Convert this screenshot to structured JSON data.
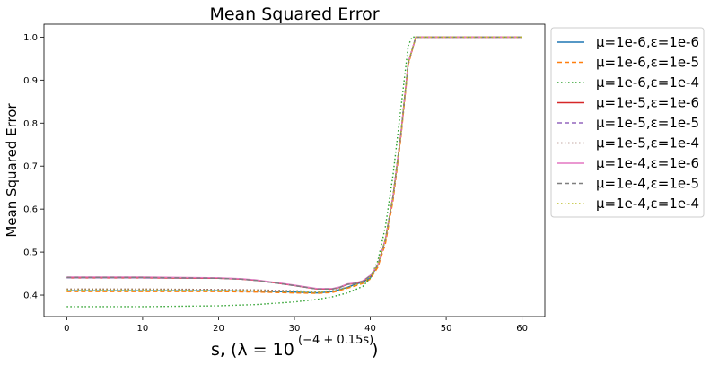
{
  "chart_data": {
    "type": "line",
    "title": "Mean Squared Error",
    "xlabel": "s, (λ = 10",
    "xlabel_exponent": "(−4 + 0.15s)",
    "xlabel_close": ")",
    "ylabel": "Mean Squared Error",
    "xlim": [
      -3,
      63
    ],
    "ylim": [
      0.35,
      1.03
    ],
    "xticks": [
      0,
      10,
      20,
      30,
      40,
      50,
      60
    ],
    "yticks": [
      0.4,
      0.5,
      0.6,
      0.7,
      0.8,
      0.9,
      1.0
    ],
    "xtick_labels": [
      "0",
      "10",
      "20",
      "30",
      "40",
      "50",
      "60"
    ],
    "ytick_labels": [
      "0.4",
      "0.5",
      "0.6",
      "0.7",
      "0.8",
      "0.9",
      "1.0"
    ],
    "grid": false,
    "legend_position": "outside-right",
    "series": [
      {
        "name": "μ=1e-6,ε=1e-6",
        "color": "#1f77b4",
        "style": "solid",
        "points": [
          [
            0,
            0.41
          ],
          [
            10,
            0.41
          ],
          [
            20,
            0.41
          ],
          [
            25,
            0.409
          ],
          [
            30,
            0.407
          ],
          [
            33,
            0.405
          ],
          [
            35,
            0.408
          ],
          [
            37,
            0.418
          ],
          [
            38,
            0.425
          ],
          [
            39,
            0.43
          ],
          [
            40,
            0.44
          ],
          [
            41,
            0.47
          ],
          [
            42,
            0.53
          ],
          [
            43,
            0.63
          ],
          [
            44,
            0.77
          ],
          [
            45,
            0.94
          ],
          [
            46,
            1.0
          ],
          [
            50,
            1.0
          ],
          [
            60,
            1.0
          ]
        ]
      },
      {
        "name": "μ=1e-6,ε=1e-5",
        "color": "#ff7f0e",
        "style": "dashed",
        "points": [
          [
            0,
            0.408
          ],
          [
            10,
            0.408
          ],
          [
            20,
            0.408
          ],
          [
            25,
            0.407
          ],
          [
            30,
            0.405
          ],
          [
            33,
            0.404
          ],
          [
            35,
            0.406
          ],
          [
            37,
            0.416
          ],
          [
            38,
            0.421
          ],
          [
            39,
            0.427
          ],
          [
            40,
            0.437
          ],
          [
            41,
            0.465
          ],
          [
            42,
            0.52
          ],
          [
            43,
            0.62
          ],
          [
            44,
            0.76
          ],
          [
            45,
            0.935
          ],
          [
            46,
            1.0
          ],
          [
            50,
            1.0
          ],
          [
            60,
            1.0
          ]
        ]
      },
      {
        "name": "μ=1e-6,ε=1e-4",
        "color": "#2ca02c",
        "style": "dotted",
        "points": [
          [
            0,
            0.373
          ],
          [
            10,
            0.373
          ],
          [
            20,
            0.375
          ],
          [
            25,
            0.378
          ],
          [
            30,
            0.384
          ],
          [
            33,
            0.39
          ],
          [
            35,
            0.396
          ],
          [
            37,
            0.405
          ],
          [
            39,
            0.42
          ],
          [
            40,
            0.44
          ],
          [
            41,
            0.48
          ],
          [
            42,
            0.56
          ],
          [
            43,
            0.68
          ],
          [
            44,
            0.83
          ],
          [
            45,
            0.98
          ],
          [
            45.5,
            1.0
          ],
          [
            50,
            1.0
          ],
          [
            60,
            1.0
          ]
        ]
      },
      {
        "name": "μ=1e-5,ε=1e-6",
        "color": "#d62728",
        "style": "solid",
        "points": [
          [
            0,
            0.44
          ],
          [
            10,
            0.44
          ],
          [
            20,
            0.439
          ],
          [
            23,
            0.437
          ],
          [
            25,
            0.434
          ],
          [
            28,
            0.427
          ],
          [
            30,
            0.422
          ],
          [
            33,
            0.414
          ],
          [
            35,
            0.414
          ],
          [
            36,
            0.418
          ],
          [
            37,
            0.425
          ],
          [
            38,
            0.427
          ],
          [
            39,
            0.432
          ],
          [
            40,
            0.445
          ],
          [
            41,
            0.47
          ],
          [
            42,
            0.53
          ],
          [
            43,
            0.63
          ],
          [
            44,
            0.77
          ],
          [
            45,
            0.94
          ],
          [
            46,
            1.0
          ],
          [
            50,
            1.0
          ],
          [
            60,
            1.0
          ]
        ]
      },
      {
        "name": "μ=1e-5,ε=1e-5",
        "color": "#9467bd",
        "style": "dashed",
        "points": [
          [
            0,
            0.44
          ],
          [
            10,
            0.44
          ],
          [
            20,
            0.439
          ],
          [
            23,
            0.437
          ],
          [
            25,
            0.434
          ],
          [
            28,
            0.427
          ],
          [
            30,
            0.422
          ],
          [
            33,
            0.414
          ],
          [
            35,
            0.414
          ],
          [
            36,
            0.418
          ],
          [
            37,
            0.425
          ],
          [
            38,
            0.427
          ],
          [
            39,
            0.432
          ],
          [
            40,
            0.445
          ],
          [
            41,
            0.47
          ],
          [
            42,
            0.53
          ],
          [
            43,
            0.63
          ],
          [
            44,
            0.77
          ],
          [
            45,
            0.94
          ],
          [
            46,
            1.0
          ],
          [
            50,
            1.0
          ],
          [
            60,
            1.0
          ]
        ]
      },
      {
        "name": "μ=1e-5,ε=1e-4",
        "color": "#8c564b",
        "style": "dotted",
        "points": [
          [
            0,
            0.414
          ],
          [
            10,
            0.414
          ],
          [
            20,
            0.413
          ],
          [
            25,
            0.412
          ],
          [
            30,
            0.41
          ],
          [
            33,
            0.408
          ],
          [
            35,
            0.41
          ],
          [
            37,
            0.418
          ],
          [
            39,
            0.43
          ],
          [
            40,
            0.443
          ],
          [
            41,
            0.47
          ],
          [
            42,
            0.53
          ],
          [
            43,
            0.63
          ],
          [
            44,
            0.77
          ],
          [
            45,
            0.94
          ],
          [
            46,
            1.0
          ],
          [
            50,
            1.0
          ],
          [
            60,
            1.0
          ]
        ]
      },
      {
        "name": "μ=1e-4,ε=1e-6",
        "color": "#e377c2",
        "style": "solid",
        "points": [
          [
            0,
            0.442
          ],
          [
            10,
            0.442
          ],
          [
            20,
            0.44
          ],
          [
            23,
            0.438
          ],
          [
            25,
            0.435
          ],
          [
            28,
            0.428
          ],
          [
            30,
            0.423
          ],
          [
            33,
            0.415
          ],
          [
            35,
            0.415
          ],
          [
            36,
            0.419
          ],
          [
            37,
            0.426
          ],
          [
            38,
            0.428
          ],
          [
            39,
            0.433
          ],
          [
            40,
            0.446
          ],
          [
            41,
            0.47
          ],
          [
            42,
            0.53
          ],
          [
            43,
            0.63
          ],
          [
            44,
            0.77
          ],
          [
            45,
            0.94
          ],
          [
            46,
            1.0
          ],
          [
            50,
            1.0
          ],
          [
            60,
            1.0
          ]
        ]
      },
      {
        "name": "μ=1e-4,ε=1e-5",
        "color": "#7f7f7f",
        "style": "dashed",
        "points": [
          [
            0,
            0.441
          ],
          [
            10,
            0.441
          ],
          [
            20,
            0.439
          ],
          [
            23,
            0.437
          ],
          [
            25,
            0.434
          ],
          [
            28,
            0.427
          ],
          [
            30,
            0.422
          ],
          [
            33,
            0.414
          ],
          [
            35,
            0.414
          ],
          [
            36,
            0.418
          ],
          [
            37,
            0.425
          ],
          [
            38,
            0.427
          ],
          [
            39,
            0.432
          ],
          [
            40,
            0.445
          ],
          [
            41,
            0.47
          ],
          [
            42,
            0.53
          ],
          [
            43,
            0.63
          ],
          [
            44,
            0.77
          ],
          [
            45,
            0.94
          ],
          [
            46,
            1.0
          ],
          [
            50,
            1.0
          ],
          [
            60,
            1.0
          ]
        ]
      },
      {
        "name": "μ=1e-4,ε=1e-4",
        "color": "#bcbd22",
        "style": "dotted",
        "points": [
          [
            0,
            0.412
          ],
          [
            10,
            0.412
          ],
          [
            20,
            0.411
          ],
          [
            25,
            0.41
          ],
          [
            30,
            0.408
          ],
          [
            33,
            0.406
          ],
          [
            35,
            0.409
          ],
          [
            37,
            0.417
          ],
          [
            39,
            0.429
          ],
          [
            40,
            0.442
          ],
          [
            41,
            0.47
          ],
          [
            42,
            0.53
          ],
          [
            43,
            0.63
          ],
          [
            44,
            0.77
          ],
          [
            45,
            0.94
          ],
          [
            46,
            1.0
          ],
          [
            50,
            1.0
          ],
          [
            60,
            1.0
          ]
        ]
      }
    ]
  }
}
